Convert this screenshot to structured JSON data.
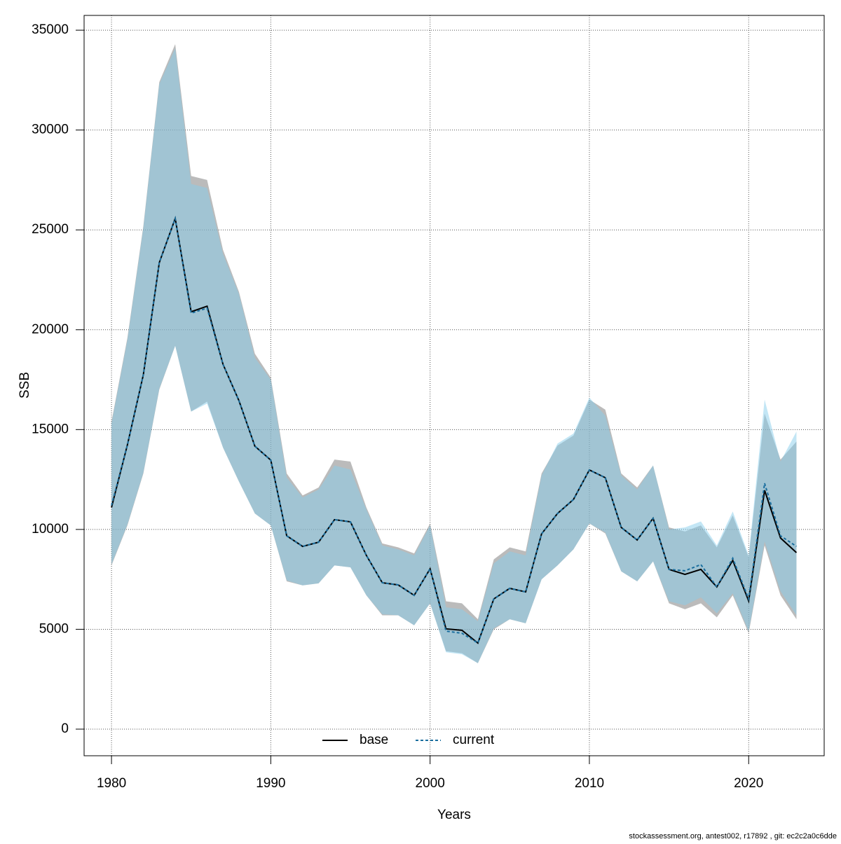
{
  "chart_data": {
    "type": "line",
    "x_label": "Years",
    "y_label": "SSB",
    "footer": "stockassessment.org, antest002, r17892 , git: ec2c2a0c6dde",
    "x": [
      1980,
      1981,
      1982,
      1983,
      1984,
      1985,
      1986,
      1987,
      1988,
      1989,
      1990,
      1991,
      1992,
      1993,
      1994,
      1995,
      1996,
      1997,
      1998,
      1999,
      2000,
      2001,
      2002,
      2003,
      2004,
      2005,
      2006,
      2007,
      2008,
      2009,
      2010,
      2011,
      2012,
      2013,
      2014,
      2015,
      2016,
      2017,
      2018,
      2019,
      2020,
      2021,
      2022,
      2023
    ],
    "series": [
      {
        "name": "base",
        "color": "#000000",
        "dash": false,
        "band_color": "rgba(120,120,120,0.5)",
        "values": [
          11100,
          14240,
          17750,
          23360,
          25570,
          20900,
          21180,
          18270,
          16450,
          14170,
          13470,
          9680,
          9150,
          9360,
          10490,
          10380,
          8700,
          7330,
          7220,
          6700,
          8030,
          5020,
          4950,
          4310,
          6520,
          7050,
          6870,
          9780,
          10800,
          11500,
          12980,
          12590,
          10100,
          9470,
          10560,
          8000,
          7750,
          8000,
          7120,
          8450,
          6420,
          11960,
          9570,
          8840
        ],
        "lower": [
          8200,
          10200,
          12800,
          17000,
          19200,
          15900,
          16400,
          14100,
          12400,
          10800,
          10200,
          7400,
          7200,
          7300,
          8200,
          8100,
          6700,
          5700,
          5700,
          5200,
          6300,
          3900,
          3800,
          3300,
          5000,
          5500,
          5300,
          7500,
          8200,
          9000,
          10300,
          9800,
          7900,
          7400,
          8400,
          6300,
          6000,
          6300,
          5600,
          6700,
          4800,
          9200,
          6700,
          5500
        ],
        "upper": [
          15400,
          19600,
          25200,
          32400,
          34300,
          27700,
          27500,
          24000,
          21900,
          18800,
          17600,
          12800,
          11700,
          12100,
          13500,
          13400,
          11100,
          9300,
          9100,
          8800,
          10300,
          6400,
          6300,
          5500,
          8500,
          9100,
          8900,
          12800,
          14200,
          14700,
          16500,
          16000,
          12800,
          12100,
          13200,
          10100,
          9900,
          10200,
          9100,
          10700,
          8600,
          15800,
          13500,
          14400
        ]
      },
      {
        "name": "current",
        "color": "#1a6e9e",
        "dash": true,
        "band_color": "rgba(135,206,235,0.5)",
        "values": [
          11200,
          14240,
          17750,
          23360,
          25570,
          20830,
          21080,
          18270,
          16450,
          14170,
          13470,
          9680,
          9150,
          9360,
          10490,
          10380,
          8700,
          7330,
          7220,
          6700,
          8030,
          4910,
          4800,
          4310,
          6520,
          7050,
          6870,
          9780,
          10800,
          11500,
          12980,
          12590,
          10100,
          9470,
          10560,
          8000,
          7930,
          8240,
          7120,
          8560,
          6520,
          12310,
          9680,
          9150
        ],
        "lower": [
          8250,
          10250,
          12850,
          17050,
          19200,
          15900,
          16300,
          14100,
          12400,
          10800,
          10200,
          7450,
          7200,
          7300,
          8200,
          8100,
          6700,
          5750,
          5700,
          5200,
          6300,
          3850,
          3750,
          3300,
          5050,
          5500,
          5300,
          7500,
          8200,
          9000,
          10300,
          9850,
          7900,
          7400,
          8400,
          6400,
          6200,
          6600,
          5800,
          6800,
          4900,
          9400,
          6900,
          5700
        ],
        "upper": [
          15300,
          19500,
          25100,
          32300,
          34100,
          27300,
          27100,
          23800,
          21800,
          18600,
          17500,
          12600,
          11600,
          12000,
          13200,
          13000,
          11000,
          9200,
          9000,
          8700,
          10200,
          6100,
          6000,
          5400,
          8300,
          8900,
          8700,
          12700,
          14300,
          14800,
          16600,
          15700,
          12700,
          12000,
          13200,
          10000,
          10100,
          10400,
          9200,
          10900,
          8700,
          16500,
          13400,
          14900
        ]
      }
    ],
    "xlim": [
      1978.28,
      2024.74
    ],
    "ylim": [
      -1333,
      35740
    ],
    "xticks": [
      1980,
      1990,
      2000,
      2010,
      2020
    ],
    "yticks": [
      0,
      5000,
      10000,
      15000,
      20000,
      25000,
      30000,
      35000
    ],
    "grid": true,
    "legend": "bottom"
  }
}
